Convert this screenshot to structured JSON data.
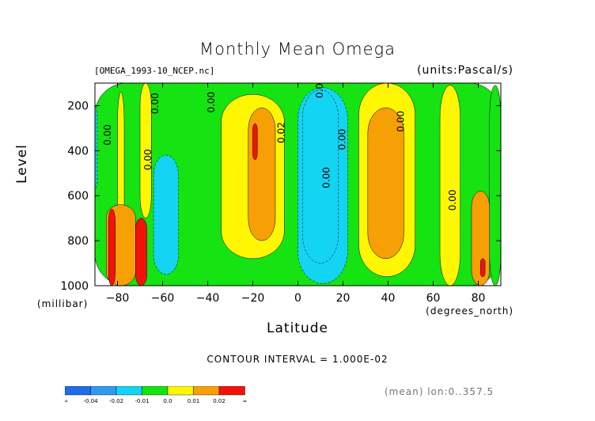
{
  "title": "Monthly Mean Omega",
  "file_label": "[OMEGA_1993-10_NCEP.nc]",
  "units_label": "(units:Pascal/s)",
  "contour_interval": "CONTOUR INTERVAL = 1.000E-02",
  "footer_note": "(mean) lon:0..357.5",
  "chart_data": {
    "type": "heatmap",
    "title": "Monthly Mean Omega",
    "xlabel": "Latitude",
    "xunit": "(degrees_north)",
    "ylabel": "Level",
    "yunit": "(millibar)",
    "xlim": [
      -90,
      90
    ],
    "ylim": [
      1000,
      100
    ],
    "xticks": [
      -80,
      -60,
      -40,
      -20,
      0,
      20,
      40,
      60,
      80
    ],
    "yticks": [
      200,
      400,
      600,
      800,
      1000
    ],
    "contour_labels": [
      "0.00",
      "0.00",
      "0.00",
      "0.00",
      "0.02",
      "0.00",
      "0.00",
      "0.00",
      "0.00",
      "0.00"
    ],
    "colorbar": {
      "labels": [
        "-∞",
        "-0.04",
        "-0.02",
        "-0.01",
        "0.0",
        "0.01",
        "0.02",
        "∞"
      ],
      "colors": [
        "#1f6bea",
        "#2e9bf0",
        "#14d4f4",
        "#15e312",
        "#fff604",
        "#f7a006",
        "#f21308"
      ]
    },
    "regions": [
      {
        "lon": [
          -90,
          90
        ],
        "lev": [
          100,
          1000
        ],
        "value": 0.0
      },
      {
        "lon": [
          -80,
          -77
        ],
        "lev": [
          140,
          1000
        ],
        "value": 0.005
      },
      {
        "lon": [
          -64,
          -53
        ],
        "lev": [
          420,
          950
        ],
        "value": -0.005
      },
      {
        "lon": [
          -34,
          -6
        ],
        "lev": [
          150,
          880
        ],
        "value": 0.005
      },
      {
        "lon": [
          -22,
          -10
        ],
        "lev": [
          210,
          800
        ],
        "value": 0.015
      },
      {
        "lon": [
          -20,
          -18
        ],
        "lev": [
          280,
          440
        ],
        "value": 0.025
      },
      {
        "lon": [
          0,
          22
        ],
        "lev": [
          120,
          990
        ],
        "value": -0.005
      },
      {
        "lon": [
          2,
          18
        ],
        "lev": [
          130,
          900
        ],
        "value": -0.015
      },
      {
        "lon": [
          27,
          52
        ],
        "lev": [
          100,
          960
        ],
        "value": 0.005
      },
      {
        "lon": [
          31,
          47
        ],
        "lev": [
          210,
          880
        ],
        "value": 0.015
      },
      {
        "lon": [
          -92,
          -89
        ],
        "lev": [
          190,
          580
        ],
        "value": -0.005
      },
      {
        "lon": [
          -85,
          -72
        ],
        "lev": [
          640,
          1000
        ],
        "value": 0.015
      },
      {
        "lon": [
          -84,
          -81
        ],
        "lev": [
          660,
          1000
        ],
        "value": 0.035
      },
      {
        "lon": [
          -72,
          -67
        ],
        "lev": [
          700,
          1000
        ],
        "value": 0.025
      },
      {
        "lon": [
          -70,
          -65
        ],
        "lev": [
          100,
          700
        ],
        "value": 0.005
      },
      {
        "lon": [
          63,
          72
        ],
        "lev": [
          110,
          1000
        ],
        "value": 0.005
      },
      {
        "lon": [
          77,
          85
        ],
        "lev": [
          580,
          1000
        ],
        "value": 0.015
      },
      {
        "lon": [
          81,
          83
        ],
        "lev": [
          880,
          960
        ],
        "value": 0.025
      },
      {
        "lon": [
          85,
          90
        ],
        "lev": [
          110,
          1000
        ],
        "value": 0.0
      }
    ]
  }
}
